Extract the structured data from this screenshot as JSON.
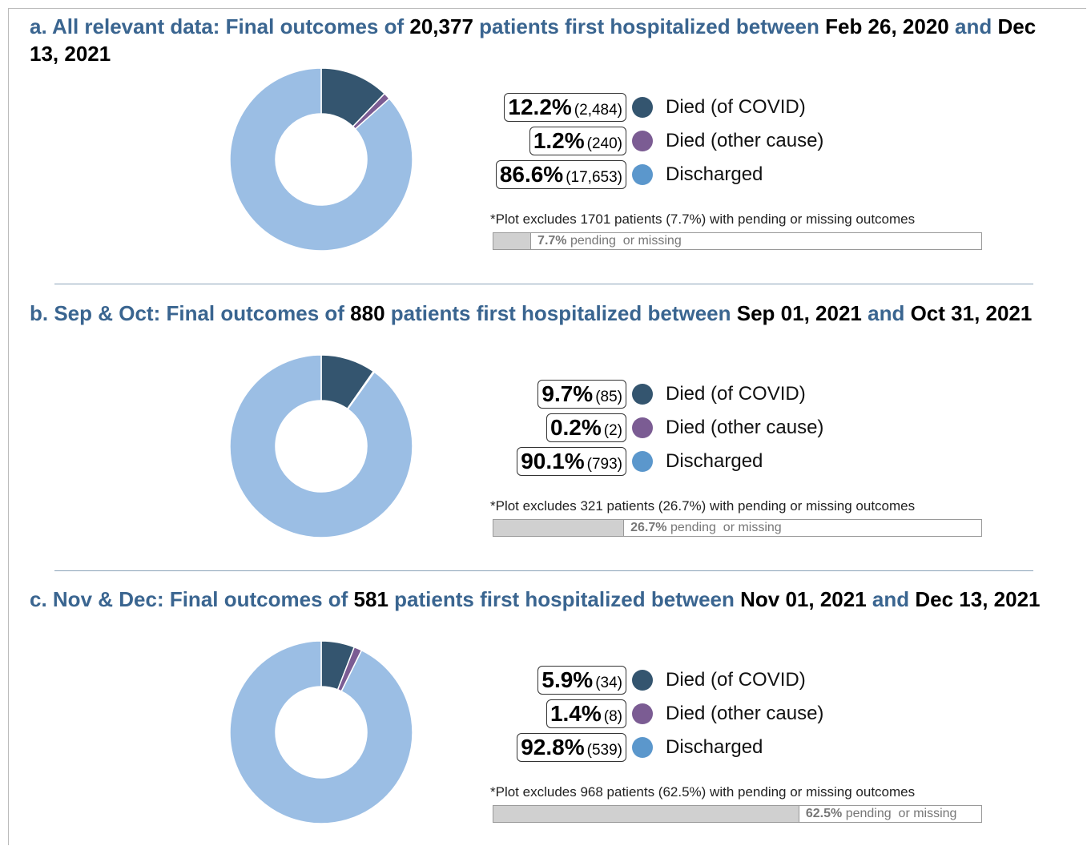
{
  "chart_data": [
    {
      "type": "pie",
      "title": [
        "a. All relevant data: Final outcomes of",
        "20,377",
        "patients first hospitalized between",
        "Feb 26, 2020",
        "and",
        "Dec 13, 2021"
      ],
      "categories": [
        "Died (of COVID)",
        "Died (other cause)",
        "Discharged"
      ],
      "values": [
        12.2,
        1.2,
        86.6
      ],
      "value_labels": [
        "12.2%",
        "1.2%",
        "86.6%"
      ],
      "counts": [
        2484,
        240,
        17653
      ],
      "count_labels": [
        "(2,484)",
        "(240)",
        "(17,653)"
      ],
      "colors": [
        "#34556f",
        "#7b5c93",
        "#9bbee4"
      ],
      "legend_colors": [
        "#34556f",
        "#7b5c93",
        "#5b97cc"
      ],
      "note": "*Plot excludes 1701 patients (7.7%) with pending or missing outcomes",
      "missing": 7.7,
      "missing_label": "7.7%",
      "missing_text": "pending  or missing",
      "missing_lim": [
        0,
        100
      ]
    },
    {
      "type": "pie",
      "title": [
        "b. Sep & Oct: Final outcomes of",
        "880",
        "patients first hospitalized between",
        "Sep 01, 2021",
        "and",
        "Oct 31, 2021"
      ],
      "categories": [
        "Died (of COVID)",
        "Died (other cause)",
        "Discharged"
      ],
      "values": [
        9.7,
        0.2,
        90.1
      ],
      "value_labels": [
        "9.7%",
        "0.2%",
        "90.1%"
      ],
      "counts": [
        85,
        2,
        793
      ],
      "count_labels": [
        "(85)",
        "(2)",
        "(793)"
      ],
      "colors": [
        "#34556f",
        "#7b5c93",
        "#9bbee4"
      ],
      "legend_colors": [
        "#34556f",
        "#7b5c93",
        "#5b97cc"
      ],
      "note": "*Plot excludes 321 patients (26.7%) with pending or missing outcomes",
      "missing": 26.7,
      "missing_label": "26.7%",
      "missing_text": "pending  or missing",
      "missing_lim": [
        0,
        100
      ]
    },
    {
      "type": "pie",
      "title": [
        "c. Nov & Dec: Final outcomes of",
        "581",
        "patients first hospitalized between",
        "Nov 01, 2021",
        "and",
        "Dec 13, 2021"
      ],
      "categories": [
        "Died (of COVID)",
        "Died (other cause)",
        "Discharged"
      ],
      "values": [
        5.9,
        1.4,
        92.8
      ],
      "value_labels": [
        "5.9%",
        "1.4%",
        "92.8%"
      ],
      "counts": [
        34,
        8,
        539
      ],
      "count_labels": [
        "(34)",
        "(8)",
        "(539)"
      ],
      "colors": [
        "#34556f",
        "#7b5c93",
        "#9bbee4"
      ],
      "legend_colors": [
        "#34556f",
        "#7b5c93",
        "#5b97cc"
      ],
      "note": "*Plot excludes 968 patients (62.5%) with pending or missing outcomes",
      "missing": 62.5,
      "missing_label": "62.5%",
      "missing_text": "pending  or missing",
      "missing_lim": [
        0,
        100
      ]
    }
  ]
}
